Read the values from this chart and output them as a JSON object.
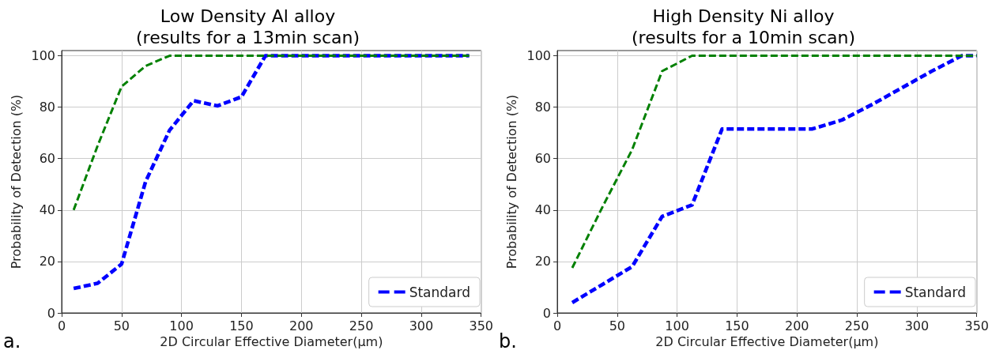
{
  "chart_data": [
    {
      "type": "line",
      "title": "Low Density Al alloy\n(results for a 13min scan)",
      "xlabel": "2D Circular Effective Diameter(μm)",
      "ylabel": "Probability of Detection (%)",
      "annotations": [
        "a."
      ],
      "xlim": [
        0,
        350
      ],
      "xticks": [
        0,
        50,
        100,
        150,
        200,
        250,
        300,
        350
      ],
      "ylim": [
        0,
        102
      ],
      "yticks": [
        0,
        20,
        40,
        60,
        80,
        100
      ],
      "grid": true,
      "legend": "bottom right",
      "line_style": "dashed",
      "marker": "none",
      "series": [
        {
          "color": "#008000",
          "x": [
            10,
            30,
            50,
            70,
            90,
            340
          ],
          "values": [
            40,
            65,
            88,
            96,
            100,
            100
          ]
        },
        {
          "name": "Standard",
          "color": "#0000ff",
          "x": [
            10,
            30,
            50,
            70,
            90,
            110,
            130,
            150,
            170,
            340
          ],
          "values": [
            9.5,
            11.5,
            19,
            51,
            71,
            82.5,
            80.5,
            84,
            100,
            100
          ]
        }
      ]
    },
    {
      "type": "line",
      "title": "High Density Ni alloy\n(results for a 10min scan)",
      "xlabel": "2D Circular Effective Diameter(μm)",
      "ylabel": "Probability of Detection (%)",
      "annotations": [
        "b."
      ],
      "xlim": [
        0,
        350
      ],
      "xticks": [
        0,
        50,
        100,
        150,
        200,
        250,
        300,
        350
      ],
      "ylim": [
        0,
        102
      ],
      "yticks": [
        0,
        20,
        40,
        60,
        80,
        100
      ],
      "grid": true,
      "legend": "bottom right",
      "line_style": "dashed",
      "marker": "none",
      "series": [
        {
          "color": "#008000",
          "x": [
            12.5,
            37.5,
            62.5,
            87.5,
            112.5,
            337.5,
            350
          ],
          "values": [
            17.5,
            41,
            63.5,
            94,
            100,
            100,
            100
          ]
        },
        {
          "name": "Standard",
          "color": "#0000ff",
          "x": [
            12.5,
            37.5,
            62.5,
            87.5,
            112.5,
            137.5,
            212.5,
            237.5,
            262.5,
            287.5,
            312.5,
            337.5,
            350
          ],
          "values": [
            4,
            11,
            18,
            37.5,
            42,
            71.5,
            71.5,
            75,
            81,
            87.5,
            94,
            100,
            100
          ]
        }
      ]
    }
  ]
}
